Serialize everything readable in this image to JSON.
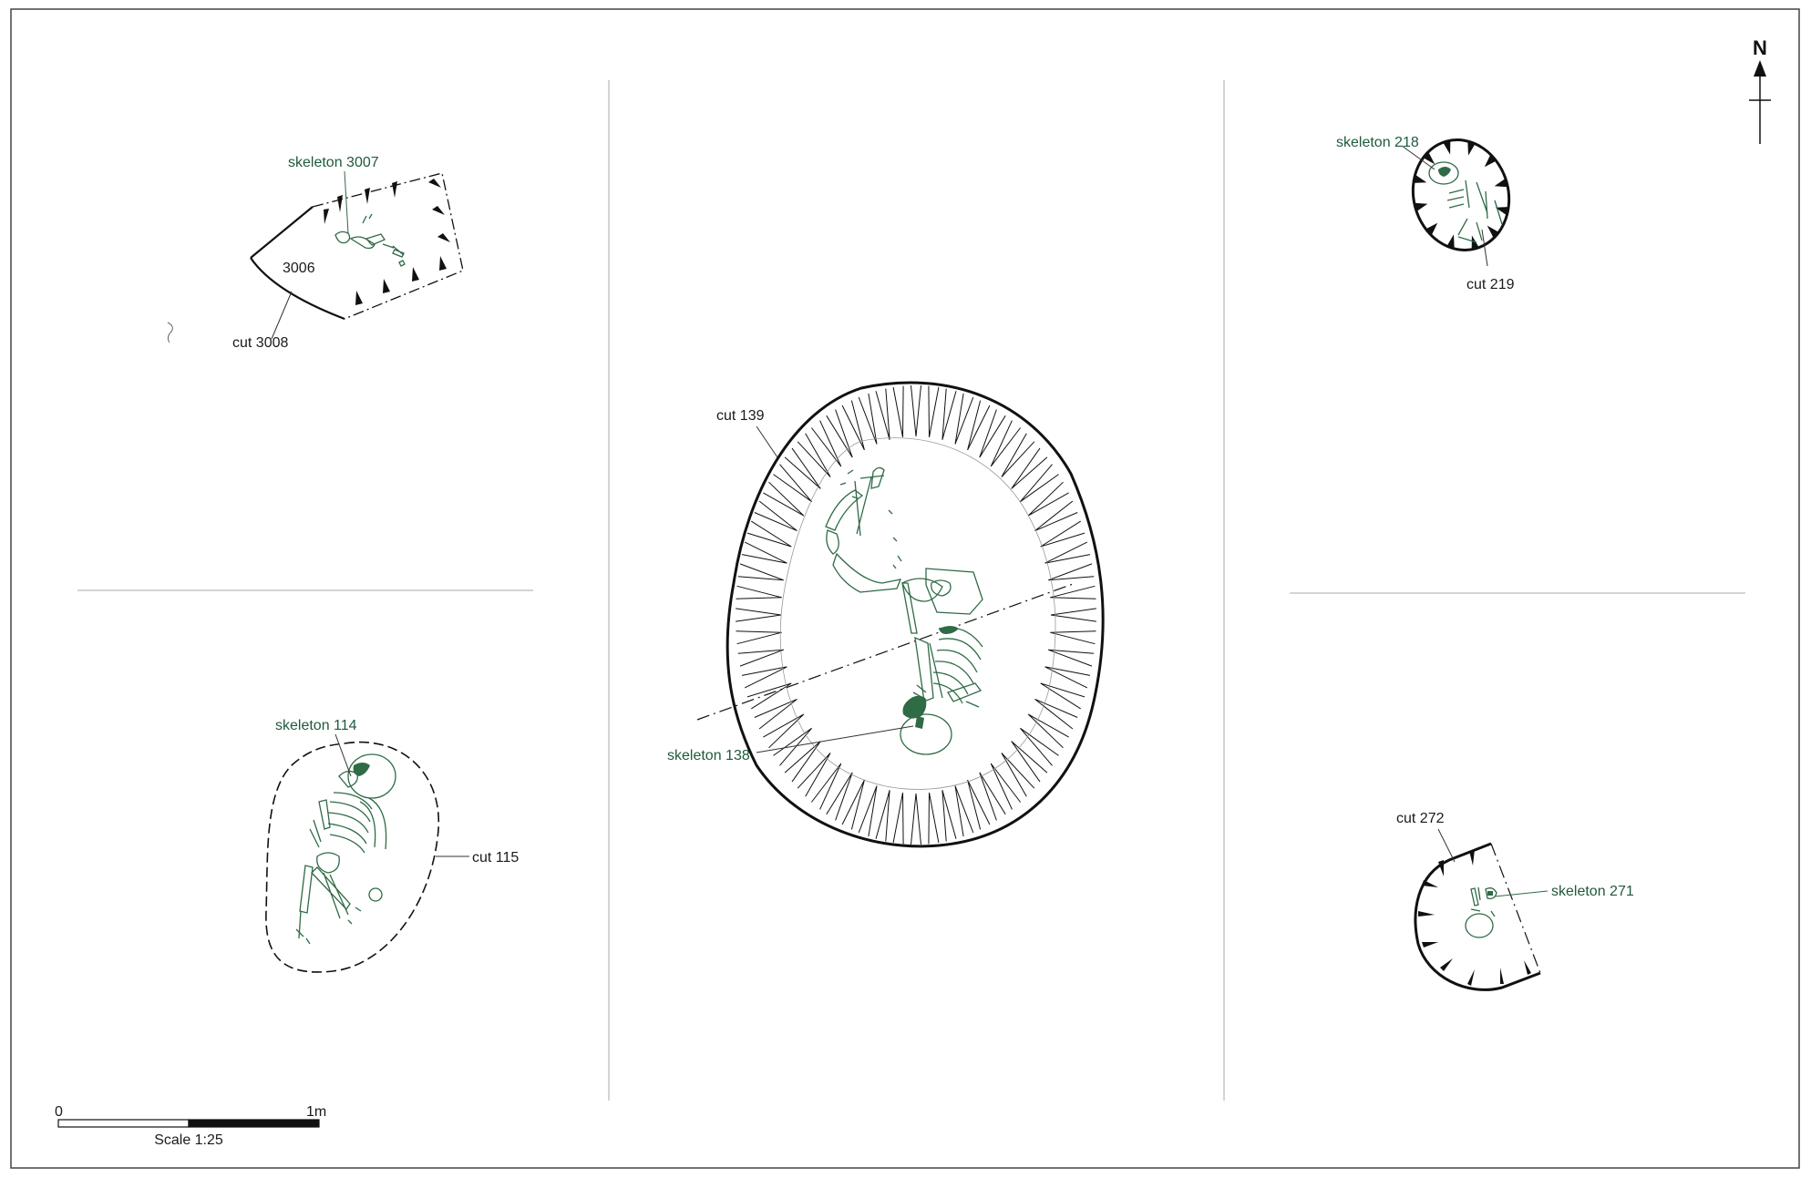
{
  "north_arrow": {
    "label": "N"
  },
  "burials": {
    "b3008": {
      "skeleton_label": "skeleton 3007",
      "fill_label": "3006",
      "cut_label": "cut 3008"
    },
    "b114": {
      "skeleton_label": "skeleton 114",
      "cut_label": "cut 115"
    },
    "b139": {
      "cut_label": "cut 139",
      "skeleton_label": "skeleton 138"
    },
    "b219": {
      "skeleton_label": "skeleton 218",
      "cut_label": "cut 219"
    },
    "b272": {
      "cut_label": "cut 272",
      "skeleton_label": "skeleton 271"
    }
  },
  "scale_bar": {
    "start_label": "0",
    "end_label": "1m",
    "caption": "Scale 1:25"
  },
  "colors": {
    "skeleton": "#2f6b45",
    "cut": "#111111",
    "divider": "#999999"
  }
}
